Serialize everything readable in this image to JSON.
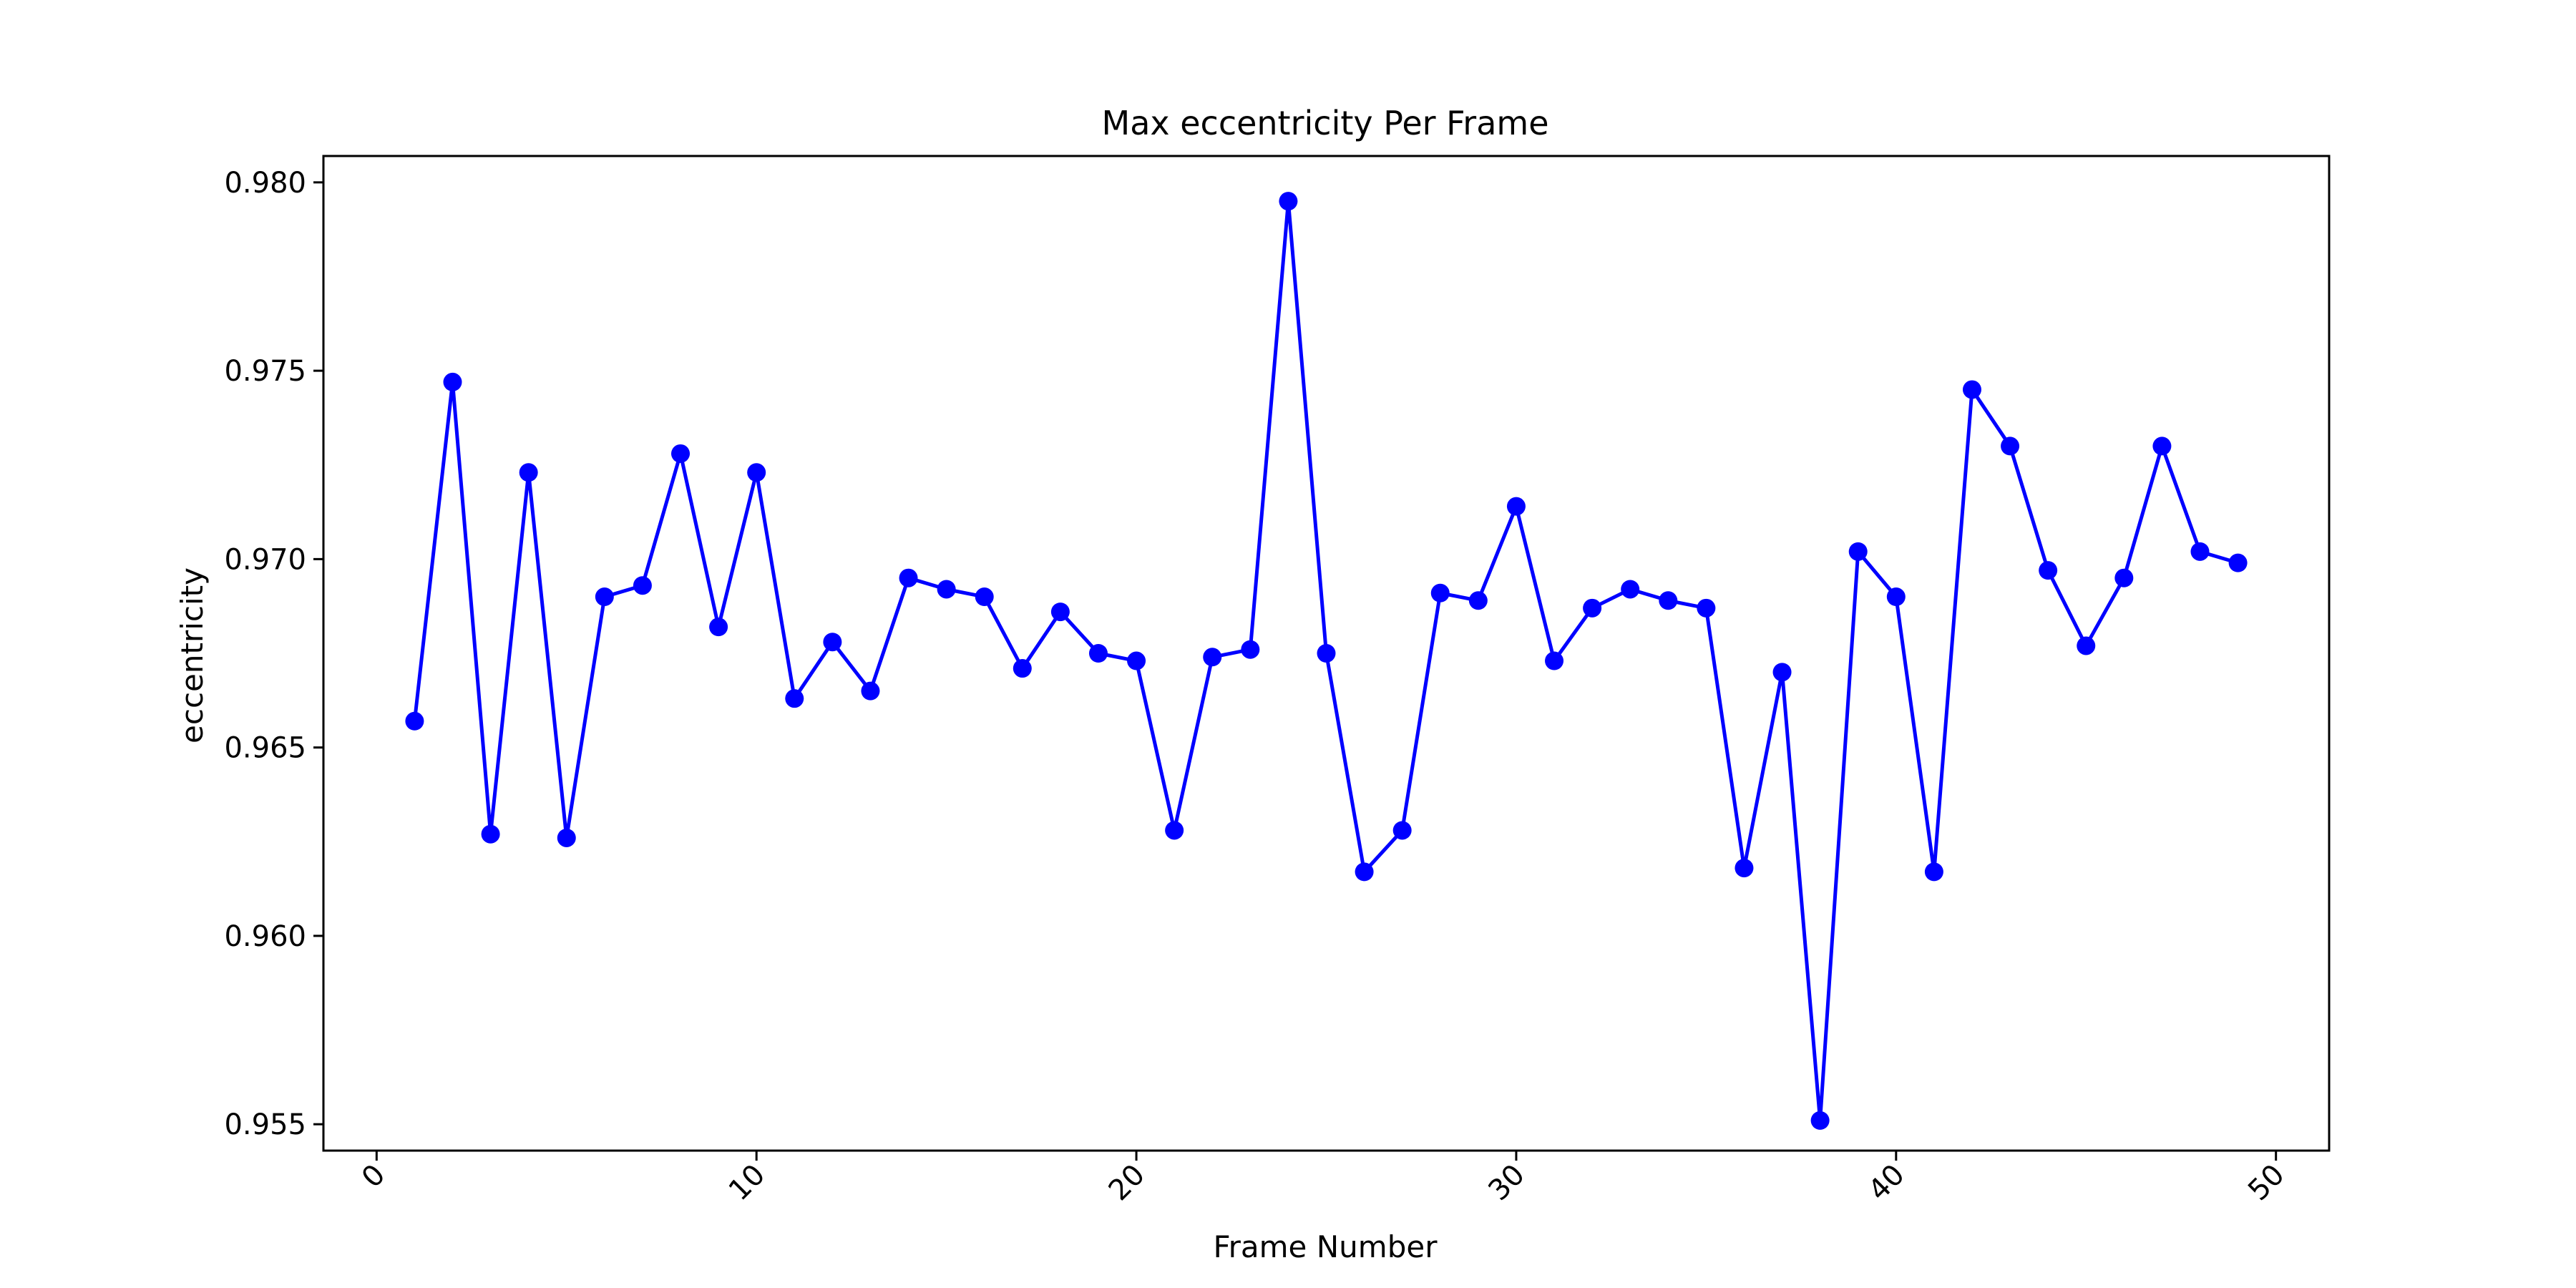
{
  "chart_data": {
    "type": "line",
    "title": "Max eccentricity Per Frame",
    "xlabel": "Frame Number",
    "ylabel": "eccentricity",
    "xlim": [
      -1.4,
      51.4
    ],
    "ylim": [
      0.9543,
      0.9807
    ],
    "xticks": [
      0,
      10,
      20,
      30,
      40,
      50
    ],
    "yticks": [
      0.955,
      0.96,
      0.965,
      0.97,
      0.975,
      0.98
    ],
    "ytick_labels": [
      "0.955",
      "0.960",
      "0.965",
      "0.970",
      "0.975",
      "0.980"
    ],
    "grid": false,
    "x": [
      1,
      2,
      3,
      4,
      5,
      6,
      7,
      8,
      9,
      10,
      11,
      12,
      13,
      14,
      15,
      16,
      17,
      18,
      19,
      20,
      21,
      22,
      23,
      24,
      25,
      26,
      27,
      28,
      29,
      30,
      31,
      32,
      33,
      34,
      35,
      36,
      37,
      38,
      39,
      40,
      41,
      42,
      43,
      44,
      45,
      46,
      47,
      48,
      49
    ],
    "series": [
      {
        "color": "#0000ff",
        "marker": "circle",
        "values": [
          0.9657,
          0.9747,
          0.9627,
          0.9723,
          0.9626,
          0.969,
          0.9693,
          0.9728,
          0.9682,
          0.9723,
          0.9663,
          0.9678,
          0.9665,
          0.9695,
          0.9692,
          0.969,
          0.9671,
          0.9686,
          0.9675,
          0.9673,
          0.9628,
          0.9674,
          0.9676,
          0.9795,
          0.9675,
          0.9617,
          0.9628,
          0.9691,
          0.9689,
          0.9714,
          0.9673,
          0.9687,
          0.9692,
          0.9689,
          0.9687,
          0.9618,
          0.967,
          0.9551,
          0.9702,
          0.969,
          0.9617,
          0.9745,
          0.973,
          0.9697,
          0.9677,
          0.9695,
          0.973,
          0.9702,
          0.9699
        ]
      }
    ]
  }
}
